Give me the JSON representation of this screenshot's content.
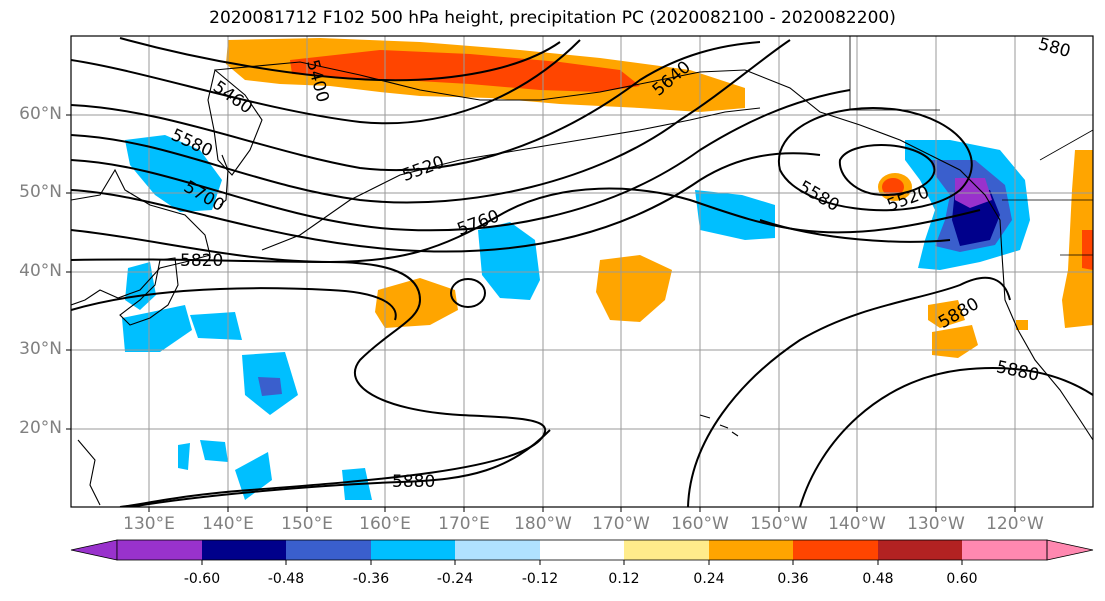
{
  "title": "2020081712 F102 500 hPa height, precipitation PC (2020082100 - 2020082200)",
  "lat_labels": [
    "60°N",
    "50°N",
    "40°N",
    "30°N",
    "20°N"
  ],
  "lon_labels": [
    "130°E",
    "140°E",
    "150°E",
    "160°E",
    "170°E",
    "180°W",
    "170°W",
    "160°W",
    "150°W",
    "140°W",
    "130°W",
    "120°W"
  ],
  "contour_labels": [
    "5400",
    "5460",
    "5520",
    "5580",
    "5640",
    "5700",
    "5760",
    "5820",
    "5880",
    "5520",
    "5580",
    "5880",
    "5880",
    "580"
  ],
  "colorbar": {
    "colors": [
      "#9932CC",
      "#00008B",
      "#3A5FCD",
      "#00BFFF",
      "#B0E2FF",
      "#FFFFFF",
      "#FFEC8B",
      "#FFA500",
      "#FF4500",
      "#B22222",
      "#FF88B0"
    ],
    "tick_labels": [
      "-0.60",
      "-0.48",
      "-0.36",
      "-0.24",
      "-0.12",
      "0.12",
      "0.24",
      "0.36",
      "0.48",
      "0.60"
    ]
  }
}
